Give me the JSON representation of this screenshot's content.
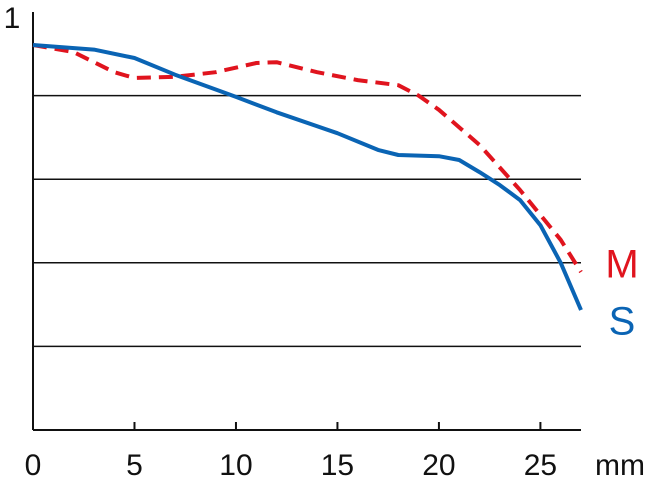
{
  "chart_data": {
    "type": "line",
    "xlabel": "mm",
    "xlim": [
      0,
      27
    ],
    "ylim": [
      0,
      1
    ],
    "xticks": [
      0,
      5,
      10,
      15,
      20,
      25
    ],
    "yticks": [
      1
    ],
    "ygrid": [
      0.2,
      0.4,
      0.6,
      0.8
    ],
    "series": [
      {
        "name": "M",
        "color": "#e0141e",
        "dashed": true,
        "x": [
          0,
          2,
          4,
          5,
          7,
          9,
          11,
          12,
          14,
          16,
          18,
          19,
          20,
          22,
          24,
          26,
          27
        ],
        "values": [
          0.921,
          0.904,
          0.856,
          0.842,
          0.845,
          0.856,
          0.878,
          0.88,
          0.856,
          0.837,
          0.825,
          0.8,
          0.766,
          0.682,
          0.574,
          0.455,
          0.378
        ]
      },
      {
        "name": "S",
        "color": "#0a64b4",
        "dashed": false,
        "x": [
          0,
          3,
          5,
          7,
          10,
          12,
          15,
          17,
          18,
          20,
          21,
          22,
          23,
          24,
          25,
          26,
          27
        ],
        "values": [
          0.921,
          0.91,
          0.89,
          0.85,
          0.797,
          0.76,
          0.71,
          0.67,
          0.658,
          0.655,
          0.646,
          0.617,
          0.586,
          0.55,
          0.49,
          0.4,
          0.287
        ]
      }
    ]
  }
}
